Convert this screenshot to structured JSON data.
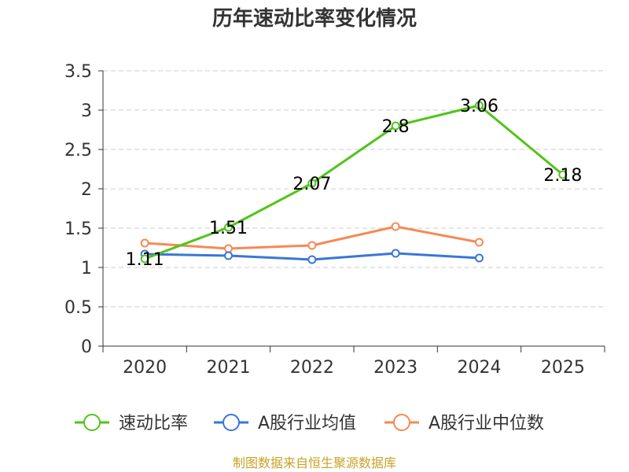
{
  "chart_data": {
    "type": "line",
    "title": "历年速动比率变化情况",
    "categories": [
      "2020",
      "2021",
      "2022",
      "2023",
      "2024",
      "2025"
    ],
    "y_ticks": [
      "0",
      "0.5",
      "1",
      "1.5",
      "2",
      "2.5",
      "3",
      "3.5"
    ],
    "ylim": [
      0,
      3.5
    ],
    "xlabel": "",
    "ylabel": "",
    "grid": true,
    "legend_position": "bottom",
    "series": [
      {
        "name": "速动比率",
        "color": "#52c41a",
        "values": [
          1.11,
          1.51,
          2.07,
          2.8,
          3.06,
          2.18
        ],
        "value_labels": [
          "1.11",
          "1.51",
          "2.07",
          "2.8",
          "3.06",
          "2.18"
        ],
        "show_labels": true
      },
      {
        "name": "A股行业均值",
        "color": "#3a76d8",
        "values": [
          1.17,
          1.15,
          1.1,
          1.18,
          1.12,
          null
        ],
        "show_labels": false
      },
      {
        "name": "A股行业中位数",
        "color": "#f58a54",
        "values": [
          1.31,
          1.24,
          1.28,
          1.52,
          1.32,
          null
        ],
        "show_labels": false
      }
    ],
    "source": "制图数据来自恒生聚源数据库"
  }
}
